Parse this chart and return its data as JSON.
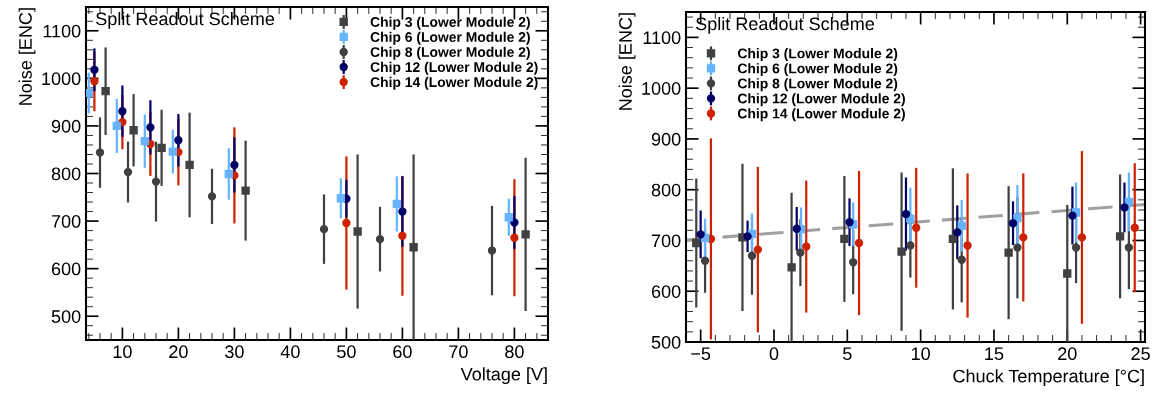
{
  "chart_data": [
    {
      "type": "scatter",
      "ylabel": "Noise [ENC]",
      "xlabel": "Voltage [V]",
      "xlim": [
        3.5,
        86
      ],
      "ylim": [
        450,
        1150
      ],
      "xticks": [
        10,
        20,
        30,
        40,
        50,
        60,
        70,
        80
      ],
      "yticks": [
        500,
        600,
        700,
        800,
        900,
        1000,
        1100
      ],
      "grid": false,
      "legend": "top right",
      "annotations": [
        "Split Readout Scheme"
      ],
      "series": [
        {
          "name": "Chip 3 (Lower Module 2)",
          "color": "#404040",
          "marker": "square",
          "x": [
            7,
            12,
            17,
            22,
            32,
            52,
            62,
            82
          ],
          "values": [
            973,
            891,
            854,
            818,
            764,
            678,
            645,
            672
          ],
          "errors": [
            92,
            76,
            80,
            110,
            105,
            162,
            195,
            161
          ]
        },
        {
          "name": "Chip 6 (Lower Module 2)",
          "color": "#66b3ff",
          "marker": "square",
          "x": [
            4,
            9,
            14,
            19,
            29,
            49,
            59,
            79
          ],
          "values": [
            969,
            900,
            868,
            846,
            799,
            748,
            736,
            708
          ],
          "errors": [
            43,
            57,
            56,
            46,
            54,
            42,
            58,
            39
          ]
        },
        {
          "name": "Chip 8 (Lower Module 2)",
          "color": "#404040",
          "marker": "circle",
          "x": [
            6,
            11,
            16,
            26,
            46,
            56,
            76
          ],
          "values": [
            844,
            803,
            783,
            752,
            683,
            662,
            638
          ],
          "errors": [
            74,
            64,
            84,
            58,
            73,
            68,
            94
          ]
        },
        {
          "name": "Chip 12 (Lower Module 2)",
          "color": "#000066",
          "marker": "circle",
          "x": [
            5,
            10,
            15,
            20,
            30,
            50,
            60,
            80
          ],
          "values": [
            1018,
            931,
            897,
            870,
            818,
            747,
            720,
            697
          ],
          "errors": [
            45,
            54,
            57,
            55,
            58,
            40,
            74,
            56
          ]
        },
        {
          "name": "Chip 14 (Lower Module 2)",
          "color": "#cc2200",
          "marker": "circle",
          "x": [
            5,
            10,
            15,
            20,
            30,
            50,
            60,
            80
          ],
          "values": [
            994,
            908,
            862,
            845,
            796,
            696,
            669,
            665
          ],
          "errors": [
            63,
            57,
            67,
            70,
            101,
            140,
            126,
            123
          ]
        }
      ]
    },
    {
      "type": "scatter",
      "ylabel": "Noise [ENC]",
      "xlabel": "Chuck Temperature [°C]",
      "xlim": [
        -6,
        25.3
      ],
      "ylim": [
        500,
        1150
      ],
      "xticks": [
        {
          "value": -5,
          "label": "−5"
        },
        0,
        5,
        10,
        15,
        20,
        25
      ],
      "yticks": [
        500,
        600,
        700,
        800,
        900,
        1000,
        1100
      ],
      "grid": false,
      "legend": "top left",
      "annotations": [
        "Split Readout Scheme"
      ],
      "series": [
        {
          "name": "Chip 3 (Lower Module 2)",
          "color": "#404040",
          "marker": "square",
          "x": [
            -5.3,
            -2.15,
            1.2,
            4.8,
            8.7,
            12.2,
            16.0,
            20.0,
            23.6
          ],
          "values": [
            695,
            706,
            647,
            703,
            678,
            703,
            676,
            635,
            708
          ],
          "errors": [
            127,
            145,
            147,
            124,
            156,
            139,
            131,
            135,
            122
          ]
        },
        {
          "name": "Chip 6 (Lower Module 2)",
          "color": "#66b3ff",
          "marker": "square",
          "x": [
            -4.7,
            -1.5,
            1.85,
            5.4,
            9.3,
            12.8,
            16.6,
            20.6,
            24.2
          ],
          "values": [
            705,
            713,
            722,
            732,
            743,
            729,
            744,
            755,
            776
          ],
          "errors": [
            38,
            40,
            43,
            43,
            61,
            51,
            65,
            59,
            58
          ]
        },
        {
          "name": "Chip 8 (Lower Module 2)",
          "color": "#404040",
          "marker": "circle",
          "x": [
            -4.7,
            -1.5,
            1.8,
            5.4,
            9.3,
            12.8,
            16.6,
            20.6,
            24.2
          ],
          "values": [
            660,
            670,
            676,
            657,
            690,
            662,
            686,
            686,
            686
          ],
          "errors": [
            63,
            77,
            66,
            63,
            63,
            84,
            100,
            70,
            82
          ]
        },
        {
          "name": "Chip 12 (Lower Module 2)",
          "color": "#000066",
          "marker": "circle",
          "x": [
            -5.0,
            -1.8,
            1.55,
            5.15,
            9.0,
            12.5,
            16.3,
            20.35,
            23.9
          ],
          "values": [
            712,
            708,
            723,
            736,
            752,
            716,
            734,
            749,
            765
          ],
          "errors": [
            47,
            31,
            43,
            47,
            72,
            53,
            43,
            57,
            49
          ]
        },
        {
          "name": "Chip 14 (Lower Module 2)",
          "color": "#cc2200",
          "marker": "circle",
          "x": [
            -4.3,
            -1.1,
            2.2,
            5.8,
            9.7,
            13.2,
            17.0,
            21.0,
            24.6
          ],
          "values": [
            703,
            682,
            688,
            695,
            725,
            690,
            706,
            706,
            725
          ],
          "errors": [
            198,
            163,
            130,
            142,
            118,
            142,
            126,
            170,
            127
          ]
        },
        {
          "type": "line",
          "color": "#a0a0a0",
          "line_style": "dashed",
          "marker": "none",
          "x": [
            -6,
            25.3
          ],
          "values": [
            701,
            771
          ]
        }
      ]
    }
  ]
}
